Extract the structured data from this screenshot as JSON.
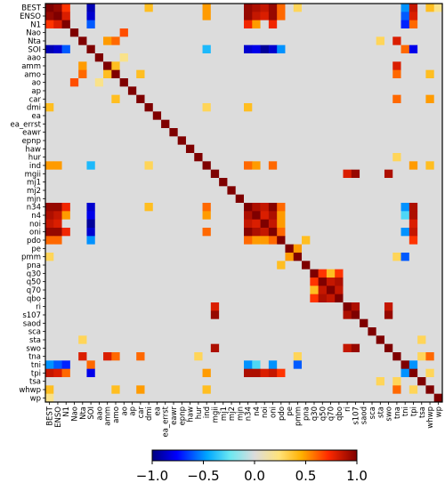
{
  "chart_data": {
    "type": "heatmap",
    "title": "",
    "xlabel": "",
    "ylabel": "",
    "variables": [
      "BEST",
      "ENSO",
      "N1",
      "Nao",
      "Nta",
      "SOI",
      "aao",
      "amm",
      "amo",
      "ao",
      "ap",
      "car",
      "dmi",
      "ea",
      "ea_errst",
      "eawr",
      "epnp",
      "haw",
      "hur",
      "ind",
      "mgii",
      "mj1",
      "mj2",
      "mjn",
      "n34",
      "n4",
      "noi",
      "oni",
      "pdo",
      "pe",
      "pmm",
      "pna",
      "q30",
      "q50",
      "q70",
      "qbo",
      "ri",
      "s107",
      "saod",
      "sca",
      "sta",
      "swo",
      "tna",
      "tni",
      "tpi",
      "tsa",
      "whwp",
      "wp"
    ],
    "diagonal_value": 1.0,
    "colorbar": {
      "min": -1.0,
      "max": 1.0,
      "ticks": [
        -1.0,
        -0.5,
        0.0,
        0.5,
        1.0
      ],
      "tick_labels": [
        "−1.0",
        "−0.5",
        "0.0",
        "0.5",
        "1.0"
      ],
      "colormap": "jet-like diverging (blue - cyan - light gray - yellow - orange - red)"
    },
    "correlations": [
      [
        "BEST",
        "ENSO",
        0.95
      ],
      [
        "BEST",
        "N1",
        0.7
      ],
      [
        "BEST",
        "SOI",
        -0.9
      ],
      [
        "BEST",
        "n34",
        0.95
      ],
      [
        "BEST",
        "n4",
        0.9
      ],
      [
        "BEST",
        "noi",
        0.85
      ],
      [
        "BEST",
        "oni",
        0.95
      ],
      [
        "BEST",
        "pdo",
        0.6
      ],
      [
        "BEST",
        "tni",
        -0.5
      ],
      [
        "BEST",
        "tpi",
        0.85
      ],
      [
        "BEST",
        "whwp",
        0.4
      ],
      [
        "BEST",
        "ind",
        0.5
      ],
      [
        "BEST",
        "dmi",
        0.4
      ],
      [
        "BEST",
        "pmm",
        0.3
      ],
      [
        "BEST",
        "wp",
        0.2
      ],
      [
        "ENSO",
        "N1",
        0.8
      ],
      [
        "ENSO",
        "SOI",
        -0.85
      ],
      [
        "ENSO",
        "n34",
        0.95
      ],
      [
        "ENSO",
        "n4",
        0.85
      ],
      [
        "ENSO",
        "noi",
        0.8
      ],
      [
        "ENSO",
        "oni",
        0.95
      ],
      [
        "ENSO",
        "pdo",
        0.6
      ],
      [
        "ENSO",
        "tpi",
        0.8
      ],
      [
        "ENSO",
        "tni",
        -0.6
      ],
      [
        "ENSO",
        "ind",
        0.5
      ],
      [
        "N1",
        "SOI",
        -0.6
      ],
      [
        "N1",
        "n34",
        0.75
      ],
      [
        "N1",
        "n4",
        0.5
      ],
      [
        "N1",
        "oni",
        0.75
      ],
      [
        "N1",
        "tpi",
        0.6
      ],
      [
        "N1",
        "tni",
        -0.7
      ],
      [
        "SOI",
        "n34",
        -0.85
      ],
      [
        "SOI",
        "n4",
        -0.8
      ],
      [
        "SOI",
        "noi",
        -0.95
      ],
      [
        "SOI",
        "oni",
        -0.85
      ],
      [
        "SOI",
        "tpi",
        -0.8
      ],
      [
        "SOI",
        "pdo",
        -0.5
      ],
      [
        "SOI",
        "tni",
        0.6
      ],
      [
        "SOI",
        "ind",
        -0.4
      ],
      [
        "Nao",
        "ao",
        0.65
      ],
      [
        "Nta",
        "amo",
        0.6
      ],
      [
        "Nta",
        "tna",
        0.8
      ],
      [
        "Nta",
        "amm",
        0.5
      ],
      [
        "Nta",
        "sta",
        0.3
      ],
      [
        "amm",
        "tna",
        0.8
      ],
      [
        "amm",
        "amo",
        0.4
      ],
      [
        "amo",
        "tna",
        0.6
      ],
      [
        "amo",
        "car",
        0.4
      ],
      [
        "amo",
        "whwp",
        0.4
      ],
      [
        "ao",
        "aao",
        0.2
      ],
      [
        "car",
        "tna",
        0.6
      ],
      [
        "car",
        "whwp",
        0.5
      ],
      [
        "dmi",
        "n34",
        0.4
      ],
      [
        "dmi",
        "ind",
        0.3
      ],
      [
        "ind",
        "n34",
        0.6
      ],
      [
        "ind",
        "n4",
        0.5
      ],
      [
        "ind",
        "oni",
        0.6
      ],
      [
        "ind",
        "tpi",
        0.5
      ],
      [
        "ind",
        "whwp",
        0.4
      ],
      [
        "mgii",
        "s107",
        0.95
      ],
      [
        "mgii",
        "swo",
        0.9
      ],
      [
        "mgii",
        "ri",
        0.8
      ],
      [
        "s107",
        "swo",
        0.95
      ],
      [
        "s107",
        "ri",
        0.9
      ],
      [
        "ri",
        "swo",
        0.85
      ],
      [
        "n34",
        "n4",
        0.9
      ],
      [
        "n34",
        "noi",
        0.85
      ],
      [
        "n34",
        "oni",
        0.98
      ],
      [
        "n34",
        "pdo",
        0.6
      ],
      [
        "n34",
        "tpi",
        0.9
      ],
      [
        "n34",
        "tni",
        -0.5
      ],
      [
        "n4",
        "noi",
        0.8
      ],
      [
        "n4",
        "oni",
        0.9
      ],
      [
        "n4",
        "tpi",
        0.9
      ],
      [
        "n4",
        "pdo",
        0.5
      ],
      [
        "n4",
        "tni",
        -0.3
      ],
      [
        "noi",
        "oni",
        0.85
      ],
      [
        "noi",
        "tpi",
        0.8
      ],
      [
        "noi",
        "pdo",
        0.5
      ],
      [
        "oni",
        "pdo",
        0.6
      ],
      [
        "oni",
        "tpi",
        0.85
      ],
      [
        "oni",
        "tni",
        -0.5
      ],
      [
        "pdo",
        "tpi",
        0.7
      ],
      [
        "pdo",
        "pna",
        0.4
      ],
      [
        "pe",
        "pmm",
        0.5
      ],
      [
        "pmm",
        "tni",
        -0.6
      ],
      [
        "pmm",
        "tna",
        0.3
      ],
      [
        "q30",
        "q50",
        0.7
      ],
      [
        "q30",
        "qbo",
        0.7
      ],
      [
        "q30",
        "q70",
        0.4
      ],
      [
        "q50",
        "q70",
        0.85
      ],
      [
        "q50",
        "qbo",
        0.9
      ],
      [
        "q70",
        "qbo",
        0.85
      ],
      [
        "tna",
        "tsa",
        0.3
      ],
      [
        "tna",
        "whwp",
        0.6
      ],
      [
        "tni",
        "tpi",
        -0.5
      ],
      [
        "tsa",
        "sta",
        0.3
      ],
      [
        "whwp",
        "tpi",
        0.3
      ],
      [
        "hur",
        "tna",
        0.3
      ]
    ]
  }
}
